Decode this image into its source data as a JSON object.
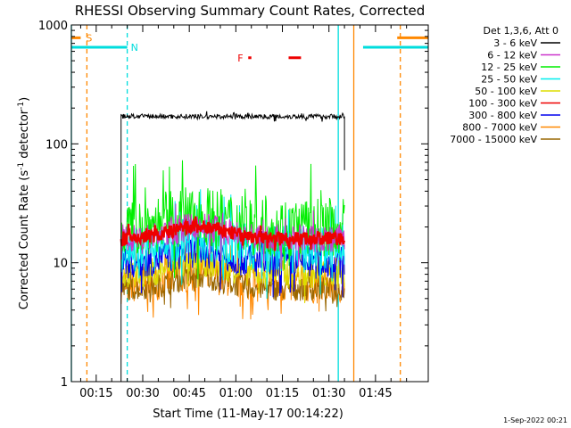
{
  "chart_data": {
    "type": "line",
    "title": "RHESSI Observing Summary Count Rates, Corrected",
    "xlabel": "Start Time (11-May-17 00:14:22)",
    "ylabel_main": "Corrected Count Rate (s",
    "ylabel_sup1": "-1",
    "ylabel_mid": " detector",
    "ylabel_sup2": "-1",
    "ylabel_end": ")",
    "yscale": "log",
    "xlim_min": [
      7,
      122
    ],
    "ylim": [
      1,
      1000
    ],
    "x_ticks": [
      {
        "min": 15,
        "label": "00:15"
      },
      {
        "min": 30,
        "label": "00:30"
      },
      {
        "min": 45,
        "label": "00:45"
      },
      {
        "min": 60,
        "label": "01:00"
      },
      {
        "min": 75,
        "label": "01:15"
      },
      {
        "min": 90,
        "label": "01:30"
      },
      {
        "min": 105,
        "label": "01:45"
      }
    ],
    "y_ticks": [
      {
        "v": 1,
        "label": "1"
      },
      {
        "v": 10,
        "label": "10"
      },
      {
        "v": 100,
        "label": "100"
      },
      {
        "v": 1000,
        "label": "1000"
      }
    ],
    "legend_header": "Det 1,3,6, Att 0",
    "legend_position": "right, outside plot",
    "data_start_min": 23,
    "data_end_min": 95,
    "series": [
      {
        "name": "3 - 6 keV",
        "color": "#000000",
        "level": 170
      },
      {
        "name": "6 - 12 keV",
        "color": "#cc33cc",
        "level": 16
      },
      {
        "name": "12 - 25 keV",
        "color": "#00ee00",
        "level": 20
      },
      {
        "name": "25 - 50 keV",
        "color": "#00eeee",
        "level": 13
      },
      {
        "name": "50 - 100 keV",
        "color": "#dddd00",
        "level": 8
      },
      {
        "name": "100 - 300 keV",
        "color": "#ee0000",
        "level": 16
      },
      {
        "name": "300 - 800 keV",
        "color": "#0000ee",
        "level": 10
      },
      {
        "name": "800 - 7000 keV",
        "color": "#ff8800",
        "level": 6.5
      },
      {
        "name": "7000 - 15000 keV",
        "color": "#996600",
        "level": 6
      }
    ],
    "flags": [
      {
        "label": "S",
        "color": "#ff8800",
        "bars": [
          [
            7,
            10
          ],
          [
            112,
            122
          ]
        ],
        "level": 780
      },
      {
        "label": "N",
        "color": "#00dddd",
        "bars": [
          [
            7,
            25
          ],
          [
            101,
            122
          ]
        ],
        "level": 650
      },
      {
        "label": "F",
        "color": "#ee0000",
        "bars": [
          [
            64,
            65
          ],
          [
            77,
            81
          ]
        ],
        "level": 530
      }
    ],
    "vlines": [
      {
        "min": 7,
        "color": "#00dddd",
        "style": "solid"
      },
      {
        "min": 12,
        "color": "#ff8800",
        "style": "dashed"
      },
      {
        "min": 25,
        "color": "#00dddd",
        "style": "dashed"
      },
      {
        "min": 93,
        "color": "#00dddd",
        "style": "solid"
      },
      {
        "min": 98,
        "color": "#ff8800",
        "style": "solid"
      },
      {
        "min": 113,
        "color": "#ff8800",
        "style": "dashed"
      }
    ]
  },
  "footer_date": "1-Sep-2022 00:21"
}
